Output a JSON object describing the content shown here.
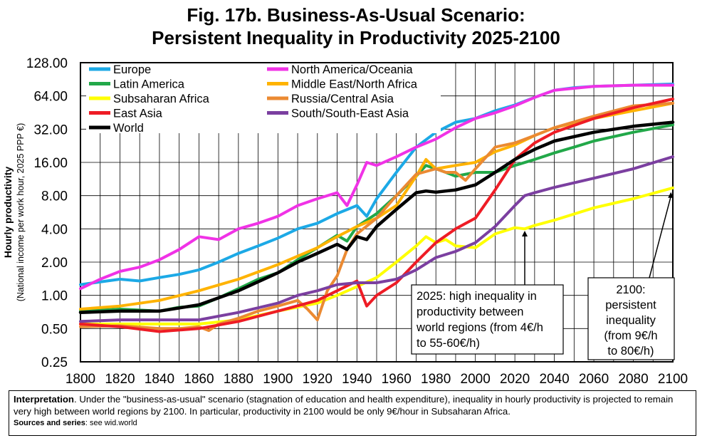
{
  "header": {
    "title_line1": "Fig. 17b. Business-As-Usual Scenario:",
    "title_line2": "Persistent Inequality in Productivity 2025-2100"
  },
  "interpretation": {
    "label": "Interpretation",
    "text": ". Under the \"business-as-usual\" scenario (stagnation of education and health expenditure), inequality in hourly productivity is projected to remain very high between world regions by 2100. In particular, productivity in 2100 would be only 9€/hour in Subsaharan Africa.",
    "sources_label": "Sources and series",
    "sources_text": ": see wid.world"
  },
  "chart_data": {
    "type": "line",
    "title": "Fig. 17b. Business-As-Usual Scenario: Persistent Inequality in Productivity 2025-2100",
    "ylabel_line1": "Hourly productivity",
    "ylabel_line2": "(National income per work hour, 2025 PPP €)",
    "xlabel": "",
    "y_scale": "log2",
    "xlim": [
      1800,
      2100
    ],
    "ylim": [
      0.25,
      128
    ],
    "x_ticks": [
      1800,
      1820,
      1840,
      1860,
      1880,
      1900,
      1920,
      1940,
      1960,
      1980,
      2000,
      2020,
      2040,
      2060,
      2080,
      2100
    ],
    "y_ticks": [
      0.25,
      0.5,
      1,
      2,
      4,
      8,
      16,
      32,
      64,
      128
    ],
    "y_tick_labels": [
      "0.25",
      "0.50",
      "1.00",
      "2.00",
      "4.00",
      "8.00",
      "16.00",
      "32.00",
      "64.00",
      "128.00"
    ],
    "grid": true,
    "legend_position": "top-left",
    "series": [
      {
        "name": "Europe",
        "color": "#1CA9E6",
        "x": [
          1800,
          1820,
          1830,
          1840,
          1850,
          1860,
          1870,
          1880,
          1890,
          1900,
          1910,
          1920,
          1930,
          1940,
          1945,
          1950,
          1960,
          1970,
          1980,
          1990,
          2000,
          2010,
          2020,
          2030,
          2040,
          2050,
          2060,
          2080,
          2100
        ],
        "y": [
          1.25,
          1.4,
          1.35,
          1.45,
          1.55,
          1.7,
          2.0,
          2.4,
          2.8,
          3.3,
          4.0,
          4.5,
          5.5,
          6.5,
          5.2,
          7.5,
          13,
          22,
          30,
          37,
          40,
          47,
          53,
          62,
          72,
          76,
          78,
          80,
          82
        ]
      },
      {
        "name": "North America/Oceania",
        "color": "#F032E6",
        "x": [
          1800,
          1810,
          1820,
          1830,
          1840,
          1850,
          1860,
          1870,
          1880,
          1890,
          1900,
          1910,
          1920,
          1930,
          1935,
          1940,
          1945,
          1950,
          1960,
          1970,
          1980,
          1990,
          2000,
          2010,
          2020,
          2030,
          2040,
          2050,
          2060,
          2080,
          2100
        ],
        "y": [
          1.15,
          1.4,
          1.65,
          1.8,
          2.1,
          2.6,
          3.4,
          3.2,
          4.0,
          4.5,
          5.2,
          6.5,
          7.5,
          8.5,
          6.5,
          10,
          16,
          15,
          18,
          22,
          26,
          33,
          40,
          45,
          52,
          62,
          72,
          75,
          78,
          80,
          80
        ]
      },
      {
        "name": "Latin America",
        "color": "#22A849",
        "x": [
          1800,
          1820,
          1840,
          1850,
          1860,
          1870,
          1880,
          1890,
          1900,
          1910,
          1920,
          1930,
          1935,
          1940,
          1950,
          1960,
          1970,
          1975,
          1980,
          1985,
          1990,
          2000,
          2010,
          2020,
          2030,
          2040,
          2050,
          2060,
          2080,
          2100
        ],
        "y": [
          0.72,
          0.75,
          0.72,
          0.78,
          0.8,
          0.95,
          1.15,
          1.4,
          1.6,
          2.1,
          2.7,
          3.5,
          3.1,
          4.2,
          5.5,
          8.0,
          12,
          15,
          14,
          13,
          12,
          13,
          13,
          15,
          17,
          19.5,
          22,
          25,
          30,
          35
        ]
      },
      {
        "name": "Middle East/North Africa",
        "color": "#FFB300",
        "x": [
          1800,
          1820,
          1840,
          1860,
          1880,
          1900,
          1920,
          1930,
          1940,
          1950,
          1960,
          1970,
          1975,
          1980,
          1990,
          2000,
          2010,
          2020,
          2030,
          2040,
          2060,
          2080,
          2100
        ],
        "y": [
          0.75,
          0.8,
          0.9,
          1.1,
          1.4,
          1.9,
          2.7,
          3.4,
          4.2,
          5.0,
          6.5,
          12,
          17,
          14,
          15,
          16,
          20,
          23,
          28,
          33,
          40,
          47,
          55
        ]
      },
      {
        "name": "Subsaharan Africa",
        "color": "#FFFF00",
        "x": [
          1800,
          1820,
          1840,
          1860,
          1880,
          1900,
          1920,
          1930,
          1940,
          1950,
          1960,
          1970,
          1975,
          1980,
          1985,
          1990,
          2000,
          2010,
          2020,
          2025,
          2030,
          2040,
          2060,
          2080,
          2100
        ],
        "y": [
          0.55,
          0.55,
          0.55,
          0.55,
          0.6,
          0.72,
          0.85,
          1.0,
          1.2,
          1.45,
          2.0,
          2.8,
          3.4,
          3.0,
          3.2,
          2.8,
          2.7,
          3.6,
          4.1,
          4.0,
          4.3,
          4.8,
          6.2,
          7.5,
          9.4
        ]
      },
      {
        "name": "Russia/Central Asia",
        "color": "#EB8A32",
        "x": [
          1800,
          1820,
          1840,
          1850,
          1860,
          1865,
          1870,
          1880,
          1890,
          1900,
          1910,
          1915,
          1920,
          1925,
          1930,
          1935,
          1940,
          1950,
          1960,
          1970,
          1980,
          1985,
          1990,
          1995,
          2000,
          2010,
          2020,
          2030,
          2040,
          2060,
          2080,
          2100
        ],
        "y": [
          0.52,
          0.53,
          0.5,
          0.5,
          0.52,
          0.48,
          0.55,
          0.62,
          0.72,
          0.8,
          0.9,
          0.75,
          0.6,
          1.1,
          1.5,
          2.6,
          3.6,
          5.0,
          8.0,
          12.5,
          14,
          13,
          13,
          11,
          14,
          22,
          24,
          28,
          33,
          42,
          52,
          55
        ]
      },
      {
        "name": "East Asia",
        "color": "#EE1C25",
        "x": [
          1800,
          1820,
          1840,
          1860,
          1880,
          1900,
          1920,
          1930,
          1940,
          1945,
          1950,
          1960,
          1970,
          1980,
          1990,
          2000,
          2010,
          2020,
          2030,
          2040,
          2060,
          2080,
          2100
        ],
        "y": [
          0.55,
          0.52,
          0.47,
          0.5,
          0.58,
          0.72,
          0.9,
          1.1,
          1.35,
          0.8,
          1.0,
          1.3,
          2.0,
          3.0,
          4.0,
          5.0,
          9.0,
          17,
          24,
          30,
          40,
          50,
          60
        ]
      },
      {
        "name": "South/South-East Asia",
        "color": "#7B3FA0",
        "x": [
          1800,
          1820,
          1840,
          1860,
          1880,
          1900,
          1910,
          1920,
          1930,
          1940,
          1950,
          1960,
          1970,
          1980,
          1990,
          2000,
          2010,
          2020,
          2025,
          2030,
          2040,
          2060,
          2080,
          2100
        ],
        "y": [
          0.58,
          0.6,
          0.6,
          0.6,
          0.7,
          0.85,
          1.0,
          1.1,
          1.25,
          1.3,
          1.3,
          1.4,
          1.7,
          2.2,
          2.5,
          3.0,
          4.2,
          6.5,
          8.0,
          8.5,
          9.5,
          11.5,
          14,
          18
        ]
      },
      {
        "name": "World",
        "color": "#000000",
        "x": [
          1800,
          1820,
          1840,
          1860,
          1880,
          1900,
          1910,
          1920,
          1930,
          1935,
          1940,
          1945,
          1950,
          1960,
          1970,
          1975,
          1980,
          1985,
          1990,
          2000,
          2010,
          2020,
          2030,
          2040,
          2060,
          2080,
          2100
        ],
        "y": [
          0.7,
          0.72,
          0.72,
          0.82,
          1.1,
          1.6,
          2.0,
          2.4,
          2.9,
          2.6,
          3.4,
          3.2,
          4.2,
          6.0,
          8.5,
          8.8,
          8.6,
          8.8,
          9.0,
          10,
          13,
          17,
          21,
          25,
          30,
          34,
          37
        ]
      }
    ],
    "annotations": [
      {
        "text": "2025: high inequality in productivity between world regions (from 4€/h to 55-60€/h)",
        "lines": [
          "2025: high inequality in",
          "productivity between",
          "world regions (from 4€/h",
          "to 55-60€/h)"
        ],
        "arrow_x": 2025,
        "arrow_y": 4.2
      },
      {
        "text": "2100: persistent inequality (from 9€/h to 80€/h)",
        "lines": [
          "2100:",
          "persistent",
          "inequality",
          "(from 9€/h",
          "to 80€/h)"
        ],
        "arrow_x": 2099,
        "arrow_y": 9.4
      }
    ]
  }
}
